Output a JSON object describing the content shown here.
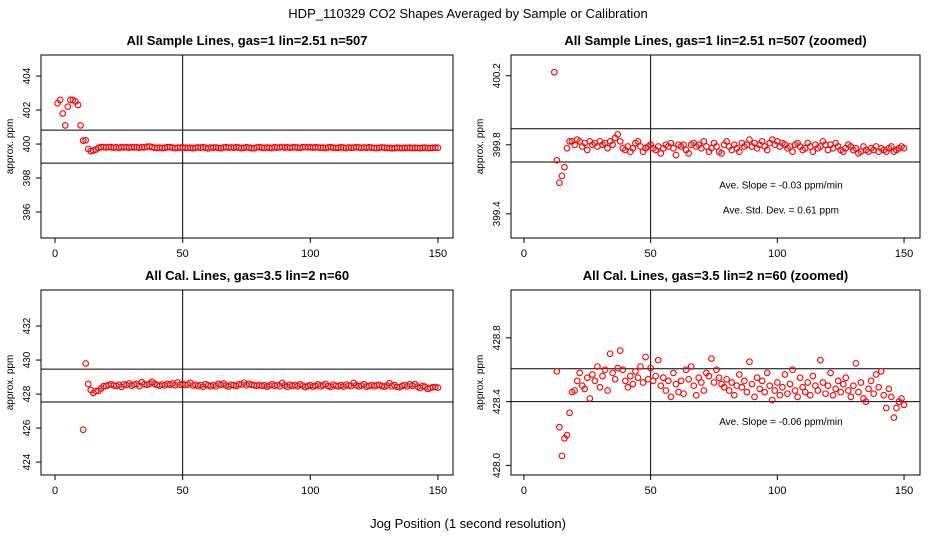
{
  "title": "HDP_110329  CO2 Shapes Averaged by Sample or Calibration",
  "xlabel": "Jog Position (1 second resolution)",
  "chart_data": [
    {
      "type": "scatter",
      "title": "All Sample Lines, gas=1 lin=2.51 n=507",
      "ylabel": "approx. ppm",
      "color": "#ff0000",
      "xlim": [
        -5.5,
        155.9
      ],
      "ylim": [
        394.47,
        405.24
      ],
      "xticks": [
        0,
        50,
        100,
        150
      ],
      "yticks": [
        396,
        398,
        400,
        402,
        404
      ],
      "hlines": [
        400.82,
        398.88
      ],
      "vline": 50,
      "x": [
        1,
        2,
        3,
        4,
        5,
        6,
        7,
        8,
        9,
        10,
        11,
        12,
        13,
        14,
        15,
        16,
        17,
        18,
        19,
        20,
        21,
        22,
        23,
        24,
        25,
        26,
        27,
        28,
        29,
        30,
        31,
        32,
        33,
        34,
        35,
        36,
        37,
        38,
        39,
        40,
        41,
        42,
        43,
        44,
        45,
        46,
        47,
        48,
        49,
        50,
        51,
        52,
        53,
        54,
        55,
        56,
        57,
        58,
        59,
        60,
        61,
        62,
        63,
        64,
        65,
        66,
        67,
        68,
        69,
        70,
        71,
        72,
        73,
        74,
        75,
        76,
        77,
        78,
        79,
        80,
        81,
        82,
        83,
        84,
        85,
        86,
        87,
        88,
        89,
        90,
        91,
        92,
        93,
        94,
        95,
        96,
        97,
        98,
        99,
        100,
        101,
        102,
        103,
        104,
        105,
        106,
        107,
        108,
        109,
        110,
        111,
        112,
        113,
        114,
        115,
        116,
        117,
        118,
        119,
        120,
        121,
        122,
        123,
        124,
        125,
        126,
        127,
        128,
        129,
        130,
        131,
        132,
        133,
        134,
        135,
        136,
        137,
        138,
        139,
        140,
        141,
        142,
        143,
        144,
        145,
        146,
        147,
        148,
        149,
        150
      ],
      "values": [
        402.4,
        402.6,
        401.8,
        401.1,
        402.2,
        402.6,
        402.6,
        402.5,
        402.3,
        401.1,
        400.2,
        400.22,
        399.71,
        399.58,
        399.62,
        399.67,
        399.78,
        399.82,
        399.82,
        399.8,
        399.83,
        399.82,
        399.79,
        399.81,
        399.77,
        399.82,
        399.8,
        399.81,
        399.79,
        399.82,
        399.8,
        399.81,
        399.78,
        399.82,
        399.8,
        399.84,
        399.86,
        399.82,
        399.78,
        399.77,
        399.79,
        399.76,
        399.78,
        399.81,
        399.82,
        399.79,
        399.76,
        399.78,
        399.79,
        399.8,
        399.78,
        399.77,
        399.79,
        399.75,
        399.78,
        399.8,
        399.79,
        399.81,
        399.78,
        399.74,
        399.8,
        399.79,
        399.8,
        399.77,
        399.75,
        399.8,
        399.81,
        399.79,
        399.8,
        399.78,
        399.82,
        399.79,
        399.76,
        399.78,
        399.81,
        399.79,
        399.76,
        399.75,
        399.8,
        399.82,
        399.79,
        399.77,
        399.8,
        399.78,
        399.76,
        399.81,
        399.79,
        399.8,
        399.83,
        399.79,
        399.81,
        399.78,
        399.8,
        399.82,
        399.79,
        399.77,
        399.81,
        399.83,
        399.8,
        399.82,
        399.79,
        399.81,
        399.8,
        399.78,
        399.79,
        399.76,
        399.8,
        399.81,
        399.79,
        399.77,
        399.78,
        399.81,
        399.79,
        399.76,
        399.8,
        399.78,
        399.79,
        399.82,
        399.8,
        399.77,
        399.8,
        399.78,
        399.81,
        399.79,
        399.77,
        399.76,
        399.78,
        399.8,
        399.79,
        399.77,
        399.78,
        399.75,
        399.76,
        399.79,
        399.77,
        399.76,
        399.78,
        399.77,
        399.79,
        399.76,
        399.78,
        399.77,
        399.76,
        399.78,
        399.79,
        399.76,
        399.77,
        399.78,
        399.79,
        399.78
      ],
      "annotations": []
    },
    {
      "type": "scatter",
      "title": "All Sample Lines, gas=1 lin=2.51 n=507 (zoomed)",
      "ylabel": "approx. ppm",
      "color": "#ff0000",
      "xlim": [
        -5.1,
        156.3
      ],
      "ylim": [
        399.26,
        400.32
      ],
      "xticks": [
        0,
        50,
        100,
        150
      ],
      "yticks": [
        399.4,
        399.8,
        400.2
      ],
      "hlines": [
        399.893,
        399.7
      ],
      "vline": 50,
      "x": [
        12,
        13,
        14,
        15,
        16,
        17,
        18,
        19,
        20,
        21,
        22,
        23,
        24,
        25,
        26,
        27,
        28,
        29,
        30,
        31,
        32,
        33,
        34,
        35,
        36,
        37,
        38,
        39,
        40,
        41,
        42,
        43,
        44,
        45,
        46,
        47,
        48,
        49,
        50,
        51,
        52,
        53,
        54,
        55,
        56,
        57,
        58,
        59,
        60,
        61,
        62,
        63,
        64,
        65,
        66,
        67,
        68,
        69,
        70,
        71,
        72,
        73,
        74,
        75,
        76,
        77,
        78,
        79,
        80,
        81,
        82,
        83,
        84,
        85,
        86,
        87,
        88,
        89,
        90,
        91,
        92,
        93,
        94,
        95,
        96,
        97,
        98,
        99,
        100,
        101,
        102,
        103,
        104,
        105,
        106,
        107,
        108,
        109,
        110,
        111,
        112,
        113,
        114,
        115,
        116,
        117,
        118,
        119,
        120,
        121,
        122,
        123,
        124,
        125,
        126,
        127,
        128,
        129,
        130,
        131,
        132,
        133,
        134,
        135,
        136,
        137,
        138,
        139,
        140,
        141,
        142,
        143,
        144,
        145,
        146,
        147,
        148,
        149,
        150
      ],
      "values": [
        400.22,
        399.71,
        399.58,
        399.62,
        399.67,
        399.78,
        399.82,
        399.82,
        399.8,
        399.83,
        399.82,
        399.79,
        399.81,
        399.77,
        399.82,
        399.8,
        399.81,
        399.79,
        399.82,
        399.8,
        399.81,
        399.78,
        399.82,
        399.8,
        399.84,
        399.86,
        399.82,
        399.78,
        399.77,
        399.79,
        399.76,
        399.78,
        399.81,
        399.82,
        399.79,
        399.76,
        399.78,
        399.79,
        399.8,
        399.78,
        399.77,
        399.79,
        399.75,
        399.78,
        399.8,
        399.79,
        399.81,
        399.78,
        399.74,
        399.8,
        399.79,
        399.8,
        399.77,
        399.75,
        399.8,
        399.81,
        399.79,
        399.8,
        399.78,
        399.82,
        399.79,
        399.76,
        399.78,
        399.81,
        399.79,
        399.76,
        399.75,
        399.8,
        399.82,
        399.79,
        399.77,
        399.8,
        399.78,
        399.76,
        399.81,
        399.79,
        399.8,
        399.83,
        399.79,
        399.81,
        399.78,
        399.8,
        399.82,
        399.79,
        399.77,
        399.81,
        399.83,
        399.8,
        399.82,
        399.79,
        399.81,
        399.8,
        399.78,
        399.79,
        399.76,
        399.8,
        399.81,
        399.79,
        399.77,
        399.78,
        399.81,
        399.79,
        399.76,
        399.8,
        399.78,
        399.79,
        399.82,
        399.8,
        399.77,
        399.8,
        399.78,
        399.81,
        399.79,
        399.77,
        399.76,
        399.78,
        399.8,
        399.79,
        399.77,
        399.78,
        399.75,
        399.76,
        399.79,
        399.77,
        399.76,
        399.78,
        399.77,
        399.79,
        399.76,
        399.78,
        399.77,
        399.76,
        399.78,
        399.79,
        399.76,
        399.77,
        399.78,
        399.79,
        399.78
      ],
      "annotations": [
        "Ave. Slope =  -0.03  ppm/min",
        "Ave. Std. Dev. =  0.61  ppm"
      ]
    },
    {
      "type": "scatter",
      "title": "All Cal. Lines, gas=3.5 lin=2 n=60",
      "ylabel": "approx. ppm",
      "color": "#ff0000",
      "xlim": [
        -5.5,
        155.9
      ],
      "ylim": [
        423.24,
        434.12
      ],
      "xticks": [
        0,
        50,
        100,
        150
      ],
      "yticks": [
        424,
        426,
        428,
        430,
        432
      ],
      "hlines": [
        429.47,
        427.53
      ],
      "vline": 50,
      "x": [
        11,
        12,
        13,
        14,
        15,
        16,
        17,
        18,
        19,
        20,
        21,
        22,
        23,
        24,
        25,
        26,
        27,
        28,
        29,
        30,
        31,
        32,
        33,
        34,
        35,
        36,
        37,
        38,
        39,
        40,
        41,
        42,
        43,
        44,
        45,
        46,
        47,
        48,
        49,
        50,
        51,
        52,
        53,
        54,
        55,
        56,
        57,
        58,
        59,
        60,
        61,
        62,
        63,
        64,
        65,
        66,
        67,
        68,
        69,
        70,
        71,
        72,
        73,
        74,
        75,
        76,
        77,
        78,
        79,
        80,
        81,
        82,
        83,
        84,
        85,
        86,
        87,
        88,
        89,
        90,
        91,
        92,
        93,
        94,
        95,
        96,
        97,
        98,
        99,
        100,
        101,
        102,
        103,
        104,
        105,
        106,
        107,
        108,
        109,
        110,
        111,
        112,
        113,
        114,
        115,
        116,
        117,
        118,
        119,
        120,
        121,
        122,
        123,
        124,
        125,
        126,
        127,
        128,
        129,
        130,
        131,
        132,
        133,
        134,
        135,
        136,
        137,
        138,
        139,
        140,
        141,
        142,
        143,
        144,
        145,
        146,
        147,
        148,
        149,
        150
      ],
      "values": [
        425.9,
        429.8,
        428.59,
        428.24,
        428.06,
        428.17,
        428.19,
        428.33,
        428.46,
        428.47,
        428.53,
        428.58,
        428.5,
        428.48,
        428.55,
        428.42,
        428.57,
        428.53,
        428.62,
        428.49,
        428.56,
        428.6,
        428.47,
        428.7,
        428.58,
        428.54,
        428.61,
        428.72,
        428.6,
        428.53,
        428.49,
        428.56,
        428.51,
        428.59,
        428.55,
        428.62,
        428.52,
        428.68,
        428.54,
        428.61,
        428.53,
        428.56,
        428.66,
        428.5,
        428.55,
        428.47,
        428.53,
        428.43,
        428.58,
        428.51,
        428.46,
        428.53,
        428.45,
        428.6,
        428.54,
        428.62,
        428.5,
        428.44,
        428.55,
        428.52,
        428.47,
        428.58,
        428.56,
        428.67,
        428.52,
        428.6,
        428.55,
        428.51,
        428.49,
        428.54,
        428.47,
        428.52,
        428.44,
        428.5,
        428.57,
        428.49,
        428.53,
        428.46,
        428.65,
        428.51,
        428.43,
        428.55,
        428.48,
        428.53,
        428.46,
        428.58,
        428.5,
        428.41,
        428.47,
        428.52,
        428.44,
        428.49,
        428.57,
        428.45,
        428.51,
        428.6,
        428.47,
        428.43,
        428.55,
        428.49,
        428.46,
        428.52,
        428.44,
        428.56,
        428.5,
        428.47,
        428.66,
        428.52,
        428.45,
        428.5,
        428.58,
        428.44,
        428.48,
        428.53,
        428.46,
        428.51,
        428.55,
        428.47,
        428.43,
        428.5,
        428.64,
        428.46,
        428.52,
        428.42,
        428.4,
        428.48,
        428.53,
        428.45,
        428.57,
        428.49,
        428.59,
        428.44,
        428.36,
        428.48,
        428.43,
        428.3,
        428.36,
        428.4,
        428.42,
        428.38
      ],
      "annotations": []
    },
    {
      "type": "scatter",
      "title": "All Cal. Lines, gas=3.5 lin=2 n=60 (zoomed)",
      "ylabel": "approx. ppm",
      "color": "#ff0000",
      "xlim": [
        -5.1,
        156.3
      ],
      "ylim": [
        427.94,
        429.1
      ],
      "xticks": [
        0,
        50,
        100,
        150
      ],
      "yticks": [
        {
          "value": 428,
          "label": "428.0"
        },
        428.4,
        428.8
      ],
      "hlines": [
        428.606,
        428.4
      ],
      "vline": 50,
      "x": [
        13,
        14,
        15,
        16,
        17,
        18,
        19,
        20,
        21,
        22,
        23,
        24,
        25,
        26,
        27,
        28,
        29,
        30,
        31,
        32,
        33,
        34,
        35,
        36,
        37,
        38,
        39,
        40,
        41,
        42,
        43,
        44,
        45,
        46,
        47,
        48,
        49,
        50,
        51,
        52,
        53,
        54,
        55,
        56,
        57,
        58,
        59,
        60,
        61,
        62,
        63,
        64,
        65,
        66,
        67,
        68,
        69,
        70,
        71,
        72,
        73,
        74,
        75,
        76,
        77,
        78,
        79,
        80,
        81,
        82,
        83,
        84,
        85,
        86,
        87,
        88,
        89,
        90,
        91,
        92,
        93,
        94,
        95,
        96,
        97,
        98,
        99,
        100,
        101,
        102,
        103,
        104,
        105,
        106,
        107,
        108,
        109,
        110,
        111,
        112,
        113,
        114,
        115,
        116,
        117,
        118,
        119,
        120,
        121,
        122,
        123,
        124,
        125,
        126,
        127,
        128,
        129,
        130,
        131,
        132,
        133,
        134,
        135,
        136,
        137,
        138,
        139,
        140,
        141,
        142,
        143,
        144,
        145,
        146,
        147,
        148,
        149,
        150
      ],
      "values": [
        428.59,
        428.24,
        428.06,
        428.17,
        428.19,
        428.33,
        428.46,
        428.47,
        428.53,
        428.58,
        428.5,
        428.48,
        428.55,
        428.42,
        428.57,
        428.53,
        428.62,
        428.49,
        428.56,
        428.6,
        428.47,
        428.7,
        428.58,
        428.54,
        428.61,
        428.72,
        428.6,
        428.53,
        428.49,
        428.56,
        428.51,
        428.59,
        428.55,
        428.62,
        428.52,
        428.68,
        428.54,
        428.61,
        428.53,
        428.56,
        428.66,
        428.5,
        428.55,
        428.47,
        428.53,
        428.43,
        428.58,
        428.51,
        428.46,
        428.53,
        428.45,
        428.6,
        428.54,
        428.62,
        428.5,
        428.44,
        428.55,
        428.52,
        428.47,
        428.58,
        428.56,
        428.67,
        428.52,
        428.6,
        428.55,
        428.51,
        428.49,
        428.54,
        428.47,
        428.52,
        428.44,
        428.5,
        428.57,
        428.49,
        428.53,
        428.46,
        428.65,
        428.51,
        428.43,
        428.55,
        428.48,
        428.53,
        428.46,
        428.58,
        428.5,
        428.41,
        428.47,
        428.52,
        428.44,
        428.49,
        428.57,
        428.45,
        428.51,
        428.6,
        428.47,
        428.43,
        428.55,
        428.49,
        428.46,
        428.52,
        428.44,
        428.56,
        428.5,
        428.47,
        428.66,
        428.52,
        428.45,
        428.5,
        428.58,
        428.44,
        428.48,
        428.53,
        428.46,
        428.51,
        428.55,
        428.47,
        428.43,
        428.5,
        428.64,
        428.46,
        428.52,
        428.42,
        428.4,
        428.48,
        428.53,
        428.45,
        428.57,
        428.49,
        428.59,
        428.44,
        428.36,
        428.48,
        428.43,
        428.3,
        428.36,
        428.4,
        428.42,
        428.38
      ],
      "annotations": [
        "Ave. Slope =  -0.06  ppm/min"
      ]
    }
  ]
}
